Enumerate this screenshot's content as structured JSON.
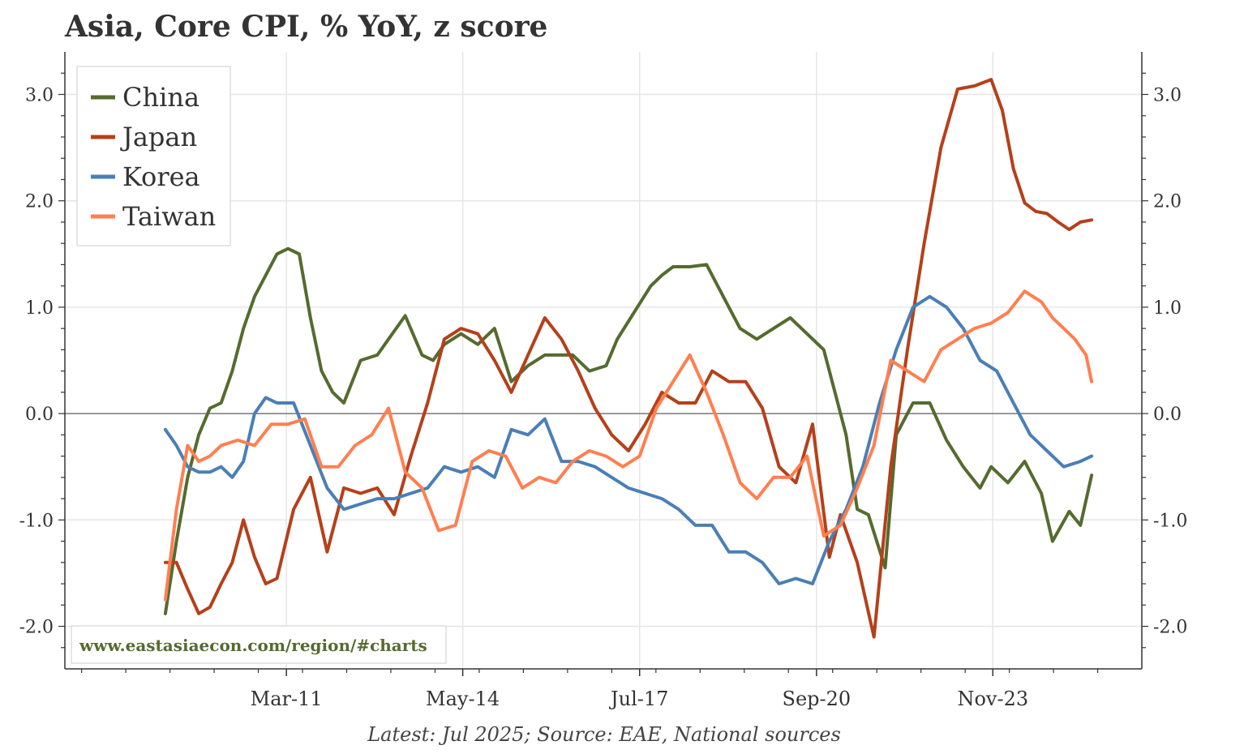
{
  "chart_data": {
    "type": "line",
    "title": "Asia, Core CPI, % YoY, z score",
    "xlabel": "",
    "ylabel": "",
    "ylim": [
      -2.4,
      3.4
    ],
    "y_ticks": [
      -2.0,
      -1.0,
      0.0,
      1.0,
      2.0,
      3.0
    ],
    "y_tick_labels": [
      "-2.0",
      "-1.0",
      "0.0",
      "1.0",
      "2.0",
      "3.0"
    ],
    "x_ticks": [
      2011.17,
      2014.33,
      2017.5,
      2020.67,
      2023.83
    ],
    "x_tick_labels": [
      "Mar-11",
      "May-14",
      "Jul-17",
      "Sep-20",
      "Nov-23"
    ],
    "xlim": [
      2007.2,
      2026.5
    ],
    "grid": true,
    "legend_position": "top-left",
    "note": "Latest: Jul 2025; Source: EAE, National sources",
    "watermark": "www.eastasiaecon.com/region/#charts",
    "series": [
      {
        "name": "China",
        "color": "#556b2f",
        "x": [
          2009.0,
          2009.2,
          2009.4,
          2009.6,
          2009.8,
          2010.0,
          2010.2,
          2010.4,
          2010.6,
          2010.8,
          2011.0,
          2011.2,
          2011.4,
          2011.6,
          2011.8,
          2012.0,
          2012.2,
          2012.5,
          2012.8,
          2013.0,
          2013.3,
          2013.6,
          2013.8,
          2014.0,
          2014.3,
          2014.6,
          2014.9,
          2015.2,
          2015.5,
          2015.8,
          2016.0,
          2016.3,
          2016.6,
          2016.9,
          2017.1,
          2017.4,
          2017.7,
          2017.9,
          2018.1,
          2018.4,
          2018.7,
          2019.0,
          2019.3,
          2019.6,
          2019.9,
          2020.2,
          2020.5,
          2020.8,
          2021.0,
          2021.2,
          2021.4,
          2021.6,
          2021.9,
          2022.1,
          2022.4,
          2022.7,
          2023.0,
          2023.3,
          2023.6,
          2023.8,
          2024.1,
          2024.4,
          2024.7,
          2024.9,
          2025.2,
          2025.4,
          2025.6
        ],
        "values": [
          -1.88,
          -1.2,
          -0.6,
          -0.2,
          0.05,
          0.1,
          0.4,
          0.8,
          1.1,
          1.3,
          1.5,
          1.55,
          1.5,
          0.9,
          0.4,
          0.2,
          0.1,
          0.5,
          0.55,
          0.7,
          0.92,
          0.55,
          0.5,
          0.65,
          0.75,
          0.65,
          0.8,
          0.3,
          0.45,
          0.55,
          0.55,
          0.55,
          0.4,
          0.45,
          0.7,
          0.95,
          1.2,
          1.3,
          1.38,
          1.38,
          1.4,
          1.1,
          0.8,
          0.7,
          0.8,
          0.9,
          0.75,
          0.6,
          0.2,
          -0.2,
          -0.9,
          -0.95,
          -1.45,
          -0.2,
          0.1,
          0.1,
          -0.25,
          -0.5,
          -0.7,
          -0.5,
          -0.65,
          -0.45,
          -0.75,
          -1.2,
          -0.92,
          -1.05,
          -0.58
        ]
      },
      {
        "name": "Japan",
        "color": "#b5401a",
        "x": [
          2009.0,
          2009.2,
          2009.4,
          2009.6,
          2009.8,
          2010.0,
          2010.2,
          2010.4,
          2010.6,
          2010.8,
          2011.0,
          2011.3,
          2011.6,
          2011.9,
          2012.2,
          2012.5,
          2012.8,
          2013.1,
          2013.4,
          2013.7,
          2014.0,
          2014.3,
          2014.6,
          2014.9,
          2015.2,
          2015.5,
          2015.8,
          2016.1,
          2016.4,
          2016.7,
          2017.0,
          2017.3,
          2017.6,
          2017.9,
          2018.2,
          2018.5,
          2018.8,
          2019.1,
          2019.4,
          2019.7,
          2020.0,
          2020.3,
          2020.6,
          2020.9,
          2021.1,
          2021.4,
          2021.7,
          2022.0,
          2022.3,
          2022.6,
          2022.9,
          2023.2,
          2023.5,
          2023.8,
          2024.0,
          2024.2,
          2024.4,
          2024.6,
          2024.8,
          2025.0,
          2025.2,
          2025.4,
          2025.6
        ],
        "values": [
          -1.4,
          -1.4,
          -1.65,
          -1.88,
          -1.82,
          -1.6,
          -1.4,
          -1.0,
          -1.35,
          -1.6,
          -1.55,
          -0.9,
          -0.6,
          -1.3,
          -0.7,
          -0.75,
          -0.7,
          -0.95,
          -0.4,
          0.1,
          0.7,
          0.8,
          0.75,
          0.5,
          0.2,
          0.55,
          0.9,
          0.7,
          0.4,
          0.05,
          -0.2,
          -0.35,
          -0.1,
          0.2,
          0.1,
          0.1,
          0.4,
          0.3,
          0.3,
          0.05,
          -0.5,
          -0.65,
          -0.1,
          -1.35,
          -0.95,
          -1.4,
          -2.1,
          -0.5,
          0.6,
          1.6,
          2.5,
          3.05,
          3.08,
          3.14,
          2.85,
          2.3,
          1.98,
          1.9,
          1.88,
          1.8,
          1.73,
          1.8,
          1.82
        ]
      },
      {
        "name": "Korea",
        "color": "#4a7fb5",
        "x": [
          2009.0,
          2009.2,
          2009.4,
          2009.6,
          2009.8,
          2010.0,
          2010.2,
          2010.4,
          2010.6,
          2010.8,
          2011.0,
          2011.3,
          2011.6,
          2011.9,
          2012.2,
          2012.5,
          2012.8,
          2013.1,
          2013.4,
          2013.7,
          2014.0,
          2014.3,
          2014.6,
          2014.9,
          2015.2,
          2015.5,
          2015.8,
          2016.1,
          2016.4,
          2016.7,
          2017.0,
          2017.3,
          2017.6,
          2017.9,
          2018.2,
          2018.5,
          2018.8,
          2019.1,
          2019.4,
          2019.7,
          2020.0,
          2020.3,
          2020.6,
          2020.9,
          2021.2,
          2021.5,
          2021.8,
          2022.1,
          2022.4,
          2022.7,
          2023.0,
          2023.3,
          2023.6,
          2023.9,
          2024.2,
          2024.5,
          2024.8,
          2025.1,
          2025.4,
          2025.6
        ],
        "values": [
          -0.15,
          -0.3,
          -0.5,
          -0.55,
          -0.55,
          -0.5,
          -0.6,
          -0.45,
          0.0,
          0.15,
          0.1,
          0.1,
          -0.3,
          -0.7,
          -0.9,
          -0.85,
          -0.8,
          -0.8,
          -0.75,
          -0.7,
          -0.5,
          -0.55,
          -0.5,
          -0.6,
          -0.15,
          -0.2,
          -0.05,
          -0.45,
          -0.45,
          -0.5,
          -0.6,
          -0.7,
          -0.75,
          -0.8,
          -0.9,
          -1.05,
          -1.05,
          -1.3,
          -1.3,
          -1.4,
          -1.6,
          -1.55,
          -1.6,
          -1.2,
          -0.9,
          -0.5,
          0.1,
          0.6,
          1.0,
          1.1,
          1.0,
          0.8,
          0.5,
          0.4,
          0.1,
          -0.2,
          -0.35,
          -0.5,
          -0.45,
          -0.4
        ]
      },
      {
        "name": "Taiwan",
        "color": "#ff7f50",
        "x": [
          2009.0,
          2009.2,
          2009.4,
          2009.6,
          2009.8,
          2010.0,
          2010.3,
          2010.6,
          2010.9,
          2011.2,
          2011.5,
          2011.8,
          2012.1,
          2012.4,
          2012.7,
          2013.0,
          2013.3,
          2013.6,
          2013.9,
          2014.2,
          2014.5,
          2014.8,
          2015.1,
          2015.4,
          2015.7,
          2016.0,
          2016.3,
          2016.6,
          2016.9,
          2017.2,
          2017.5,
          2017.8,
          2018.1,
          2018.4,
          2018.7,
          2019.0,
          2019.3,
          2019.6,
          2019.9,
          2020.2,
          2020.5,
          2020.8,
          2021.1,
          2021.4,
          2021.7,
          2022.0,
          2022.3,
          2022.6,
          2022.9,
          2023.2,
          2023.5,
          2023.8,
          2024.1,
          2024.4,
          2024.7,
          2024.9,
          2025.1,
          2025.3,
          2025.5,
          2025.6
        ],
        "values": [
          -1.75,
          -0.9,
          -0.3,
          -0.45,
          -0.4,
          -0.3,
          -0.25,
          -0.3,
          -0.1,
          -0.1,
          -0.05,
          -0.5,
          -0.5,
          -0.3,
          -0.2,
          0.05,
          -0.55,
          -0.7,
          -1.1,
          -1.05,
          -0.45,
          -0.35,
          -0.4,
          -0.7,
          -0.6,
          -0.65,
          -0.45,
          -0.35,
          -0.4,
          -0.5,
          -0.4,
          0.05,
          0.3,
          0.55,
          0.2,
          -0.2,
          -0.65,
          -0.8,
          -0.6,
          -0.6,
          -0.4,
          -1.15,
          -1.05,
          -0.7,
          -0.3,
          0.5,
          0.4,
          0.3,
          0.6,
          0.7,
          0.8,
          0.85,
          0.95,
          1.15,
          1.05,
          0.9,
          0.8,
          0.7,
          0.55,
          0.3
        ]
      }
    ]
  }
}
